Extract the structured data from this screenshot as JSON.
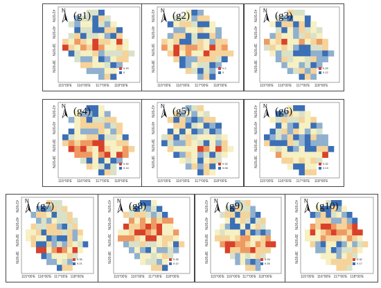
{
  "x_ticks": [
    "115°00'E",
    "116°00'E",
    "117°00'E",
    "118°00'E"
  ],
  "y_ticks": [
    "41°00'N",
    "40°00'N",
    "39°00'N",
    "38°00'N"
  ],
  "north_label": "N",
  "palette": [
    "#3b6fb6",
    "#8fb0cf",
    "#d9e2c9",
    "#f6f0c2",
    "#f5d39a",
    "#ee9a62",
    "#d9412a"
  ],
  "panels": [
    {
      "id": "g1",
      "title": "(g1)",
      "legend": {
        "high": "0.20",
        "low": "0"
      },
      "hot_rows": [
        5,
        6
      ]
    },
    {
      "id": "g2",
      "title": "(g2)",
      "legend": {
        "high": "0.2",
        "low": "0"
      },
      "hot_rows": [
        6,
        7
      ]
    },
    {
      "id": "g3",
      "title": "(g3)",
      "legend": {
        "high": "0.25",
        "low": "0.12"
      },
      "hot_rows": [
        5
      ]
    },
    {
      "id": "g4",
      "title": "(g4)",
      "legend": {
        "high": "0.30",
        "low": "0.14"
      },
      "hot_rows": [
        6,
        7,
        8
      ]
    },
    {
      "id": "g5",
      "title": "(g5)",
      "legend": {
        "high": "0.32",
        "low": "0.08"
      },
      "hot_rows": [
        7
      ]
    },
    {
      "id": "g6",
      "title": "(g6)",
      "legend": {
        "high": "0.32",
        "low": "0.13"
      },
      "hot_rows": [
        8
      ]
    },
    {
      "id": "g7",
      "title": "(g7)",
      "legend": {
        "high": "0.35",
        "low": "0.21"
      },
      "hot_rows": [
        8
      ]
    },
    {
      "id": "g8",
      "title": "(g8)",
      "legend": {
        "high": "0.35",
        "low": "0.12"
      },
      "hot_rows": [
        3,
        4,
        5,
        6
      ]
    },
    {
      "id": "g9",
      "title": "(g9)",
      "legend": {
        "high": "0.25",
        "low": "0.16"
      },
      "hot_rows": [
        6,
        7,
        8
      ]
    },
    {
      "id": "g10",
      "title": "(g10)",
      "legend": {
        "high": "0.30",
        "low": "0.17"
      },
      "hot_rows": [
        4,
        5,
        6
      ]
    }
  ]
}
